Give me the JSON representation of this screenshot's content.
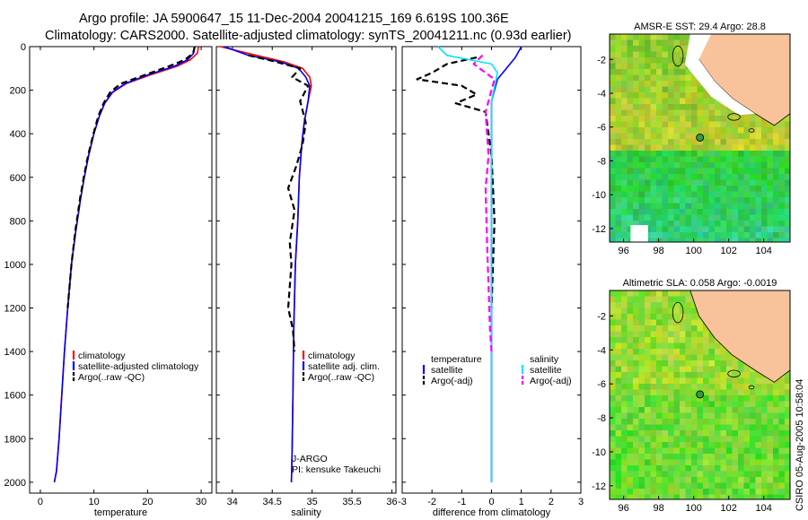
{
  "title_line1": "Argo profile: JA 5900647_15 11-Dec-2004 20041215_169 6.619S 100.36E",
  "title_line2": "Climatology: CARS2000. Satellite-adjusted climatology: synTS_20041211.nc (0.93d earlier)",
  "credit": "CSIRO 05-Aug-2005 10:58:04",
  "colors": {
    "clim": "#ff0000",
    "sat": "#0000ff",
    "argo": "#000000",
    "salsat": "#00e5ff",
    "salargo": "#ff00ff"
  },
  "chart_data": [
    {
      "type": "line",
      "id": "temperature",
      "xlabel": "temperature",
      "xlim": [
        -2,
        32
      ],
      "ylim": [
        0,
        2050
      ],
      "xticks": [
        0,
        10,
        20,
        30
      ],
      "yticks": [
        0,
        200,
        400,
        600,
        800,
        1000,
        1200,
        1400,
        1600,
        1800,
        2000
      ],
      "legend": [
        "climatology",
        "satellite-adjusted climatology",
        "Argo(..raw -QC)"
      ],
      "series": [
        {
          "name": "climatology",
          "style": "clim",
          "x": [
            29.5,
            29.3,
            28.0,
            25.5,
            20.5,
            16.0,
            13.5,
            12.0,
            11.0,
            10.0,
            9.0,
            8.2,
            7.5,
            6.6,
            5.8,
            5.1,
            4.5,
            4.0,
            3.5,
            3.0,
            2.6
          ],
          "y": [
            0,
            30,
            60,
            90,
            130,
            170,
            210,
            260,
            320,
            400,
            500,
            600,
            700,
            850,
            1000,
            1200,
            1400,
            1600,
            1800,
            1950,
            2000
          ]
        },
        {
          "name": "satellite-adjusted climatology",
          "style": "sat",
          "x": [
            28.8,
            28.6,
            27.5,
            25.0,
            20.0,
            15.8,
            13.4,
            12.0,
            11.0,
            10.0,
            9.0,
            8.2,
            7.5,
            6.6,
            5.8,
            5.1,
            4.5,
            4.0,
            3.5,
            3.0,
            2.6
          ],
          "y": [
            0,
            30,
            60,
            90,
            130,
            170,
            210,
            260,
            320,
            400,
            500,
            600,
            700,
            850,
            1000,
            1200,
            1400,
            1600,
            1800,
            1950,
            2000
          ]
        },
        {
          "name": "Argo(..raw -QC)",
          "style": "argo",
          "x": [
            28.8,
            28.5,
            27.0,
            24.0,
            19.5,
            15.0,
            13.0,
            11.8,
            10.8,
            9.9,
            8.9,
            8.1,
            7.4,
            6.5,
            5.8,
            5.1
          ],
          "y": [
            0,
            30,
            60,
            90,
            130,
            170,
            210,
            260,
            320,
            400,
            500,
            600,
            700,
            850,
            1000,
            1200
          ]
        }
      ]
    },
    {
      "type": "line",
      "id": "salinity",
      "xlabel": "salinity",
      "xlim": [
        33.8,
        36.05
      ],
      "ylim": [
        0,
        2050
      ],
      "xticks": [
        34,
        34.5,
        35,
        35.5,
        36
      ],
      "legend": [
        "climatology",
        "satellite adj. clim.",
        "Argo(..raw -QC)"
      ],
      "annotation": [
        "J-ARGO",
        "PI: kensuke Takeuchi"
      ],
      "series": [
        {
          "name": "climatology",
          "style": "clim",
          "x": [
            33.85,
            34.3,
            34.65,
            34.88,
            34.97,
            34.99,
            34.95,
            34.9,
            34.87,
            34.84,
            34.82,
            34.79,
            34.77,
            34.76,
            34.75,
            34.74
          ],
          "y": [
            0,
            40,
            70,
            100,
            140,
            180,
            250,
            350,
            450,
            600,
            800,
            1000,
            1300,
            1600,
            1850,
            2000
          ]
        },
        {
          "name": "satellite adj. clim.",
          "style": "sat",
          "x": [
            33.9,
            34.2,
            34.6,
            34.83,
            34.92,
            34.97,
            34.95,
            34.9,
            34.87,
            34.84,
            34.82,
            34.79,
            34.77,
            34.76,
            34.75,
            34.74
          ],
          "y": [
            0,
            40,
            70,
            100,
            140,
            180,
            250,
            350,
            450,
            600,
            800,
            1000,
            1300,
            1600,
            1850,
            2000
          ]
        },
        {
          "name": "Argo(..raw -QC)",
          "style": "argo",
          "x": [
            34.2,
            34.55,
            34.85,
            34.75,
            34.95,
            34.85,
            34.92,
            34.88,
            34.8,
            34.7,
            34.78,
            34.72,
            34.74,
            34.72,
            34.7,
            34.76,
            34.78
          ],
          "y": [
            40,
            70,
            100,
            140,
            180,
            250,
            350,
            450,
            550,
            650,
            750,
            900,
            1000,
            1100,
            1200,
            1300,
            1400
          ]
        }
      ]
    },
    {
      "type": "line",
      "id": "difference",
      "xlabel": "difference from climatology",
      "xlim": [
        -3,
        3
      ],
      "ylim": [
        0,
        2050
      ],
      "xticks": [
        -3,
        -2,
        -1,
        0,
        1,
        2,
        3
      ],
      "legend_left_title": "temperature",
      "legend_left": [
        "satellite",
        "Argo(-adj)"
      ],
      "legend_right_title": "salinity",
      "legend_right": [
        "satellite",
        "Argo(-adj)"
      ],
      "series": [
        {
          "name": "temperature satellite",
          "style": "sat",
          "x": [
            1.0,
            0.8,
            0.5,
            0.2,
            0.0,
            0.0,
            0.0,
            0.0,
            0.0,
            0.0,
            0.0,
            0.0
          ],
          "y": [
            0,
            50,
            100,
            150,
            250,
            400,
            600,
            800,
            1000,
            1400,
            1800,
            2000
          ]
        },
        {
          "name": "temperature Argo(-adj)",
          "style": "argo",
          "x": [
            -0.5,
            -1.5,
            -2.0,
            -2.5,
            -1.0,
            -0.5,
            -1.2,
            -0.2,
            0.0,
            0.1,
            0.0
          ],
          "y": [
            50,
            80,
            120,
            150,
            180,
            220,
            260,
            300,
            500,
            800,
            1200
          ]
        },
        {
          "name": "salinity satellite",
          "style": "salsat",
          "x": [
            -1.8,
            -1.5,
            0.0,
            0.2,
            0.0,
            0.0,
            0.0,
            0.0,
            0.0
          ],
          "y": [
            0,
            40,
            80,
            120,
            250,
            500,
            900,
            1400,
            2000
          ]
        },
        {
          "name": "salinity Argo(-adj)",
          "style": "salargo",
          "x": [
            -0.3,
            -0.6,
            0.1,
            -0.2,
            -0.1,
            -0.2,
            -0.15,
            -0.1,
            -0.05,
            0.0
          ],
          "y": [
            40,
            80,
            150,
            300,
            500,
            650,
            900,
            1100,
            1300,
            1400
          ]
        }
      ]
    },
    {
      "type": "heatmap",
      "id": "sst-map",
      "title": "AMSR-E SST: 29.4 Argo: 28.8",
      "xticks": [
        96,
        98,
        100,
        102,
        104
      ],
      "yticks": [
        -2,
        -4,
        -6,
        -8,
        -10,
        -12
      ],
      "xlim": [
        95.2,
        105.5
      ],
      "ylim": [
        -12.8,
        -0.5
      ],
      "argo_position": [
        100.36,
        -6.62
      ]
    },
    {
      "type": "heatmap",
      "id": "sla-map",
      "title": "Altimetric SLA: 0.058 Argo: -0.0019",
      "xticks": [
        96,
        98,
        100,
        102,
        104
      ],
      "yticks": [
        -2,
        -4,
        -6,
        -8,
        -10,
        -12
      ],
      "xlim": [
        95.2,
        105.5
      ],
      "ylim": [
        -12.8,
        -0.5
      ],
      "argo_position": [
        100.36,
        -6.62
      ]
    }
  ]
}
